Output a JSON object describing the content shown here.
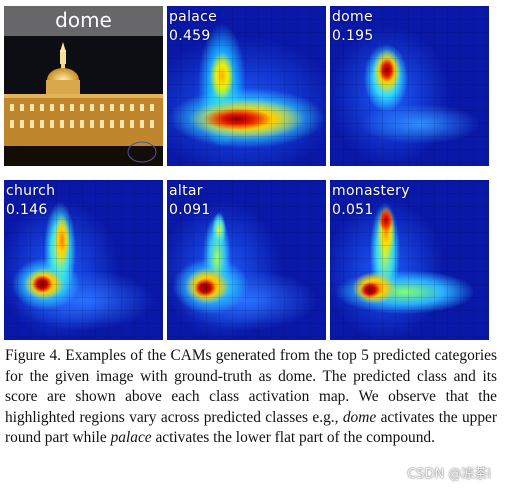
{
  "figure": {
    "ground_truth_label": "dome",
    "panels": [
      {
        "class": "palace",
        "score": "0.459"
      },
      {
        "class": "dome",
        "score": "0.195"
      },
      {
        "class": "church",
        "score": "0.146"
      },
      {
        "class": "altar",
        "score": "0.091"
      },
      {
        "class": "monastery",
        "score": "0.051"
      }
    ]
  },
  "caption": {
    "part1": "Figure 4. Examples of the CAMs generated from the top 5 predicted categories for the given image with ground-truth as dome. The predicted class and its score are shown above each class activation map. We observe that the highlighted regions vary across predicted classes e.g., ",
    "em1": "dome",
    "part2": " activates the upper round part while ",
    "em2": "palace",
    "part3": " activates the lower flat part of the compound."
  },
  "watermark": "CSDN @凉茶i"
}
